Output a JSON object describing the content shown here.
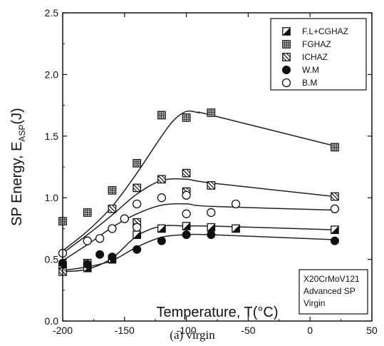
{
  "chart_data": {
    "type": "scatter",
    "xlabel": "Temperature, T(°C)",
    "ylabel": "SP Energy, E",
    "ylabel_sub": "ASP",
    "ylabel_suffix": "(J)",
    "xlim": [
      -200,
      50
    ],
    "ylim": [
      0.0,
      2.5
    ],
    "x_ticks": [
      -200,
      -150,
      -100,
      -50,
      0,
      50
    ],
    "x_tick_labels": [
      "-200",
      "-150",
      "-100",
      "-50",
      "0",
      "50"
    ],
    "y_ticks": [
      0.0,
      0.5,
      1.0,
      1.5,
      2.0,
      2.5
    ],
    "y_tick_labels": [
      "0.0",
      "0.5",
      "1.0",
      "1.5",
      "2.0",
      "2.5"
    ],
    "legend_position": "top-right",
    "annotation": [
      "X20CrMoV121",
      "Advanced SP",
      "Virgin"
    ],
    "caption": "(a)  virgin",
    "series": [
      {
        "name": "F.L+CGHAZ",
        "marker": "half-filled-square",
        "x": [
          -200,
          -180,
          -160,
          -140,
          -120,
          -100,
          -80,
          -60,
          20
        ],
        "y": [
          0.45,
          0.43,
          0.5,
          0.7,
          0.75,
          0.77,
          0.76,
          0.75,
          0.74
        ]
      },
      {
        "name": "FGHAZ",
        "marker": "crossed-square",
        "x": [
          -200,
          -180,
          -160,
          -140,
          -120,
          -100,
          -80,
          20
        ],
        "y": [
          0.81,
          0.88,
          1.06,
          1.28,
          1.67,
          1.65,
          1.69,
          1.41
        ]
      },
      {
        "name": "ICHAZ",
        "marker": "hatched-square",
        "x": [
          -200,
          -180,
          -160,
          -140,
          -140,
          -120,
          -100,
          -100,
          -80,
          20
        ],
        "y": [
          0.4,
          0.47,
          0.91,
          0.8,
          1.08,
          1.15,
          1.2,
          1.05,
          1.1,
          1.01
        ]
      },
      {
        "name": "W.M",
        "marker": "filled-circle",
        "x": [
          -200,
          -180,
          -170,
          -160,
          -140,
          -120,
          -100,
          -80,
          20
        ],
        "y": [
          0.47,
          0.46,
          0.54,
          0.52,
          0.58,
          0.65,
          0.7,
          0.7,
          0.65
        ]
      },
      {
        "name": "B.M",
        "marker": "open-circle",
        "x": [
          -200,
          -180,
          -170,
          -160,
          -150,
          -140,
          -140,
          -120,
          -100,
          -100,
          -80,
          -60,
          20
        ],
        "y": [
          0.55,
          0.65,
          0.67,
          0.75,
          0.83,
          0.76,
          0.95,
          1.0,
          1.02,
          0.87,
          0.88,
          0.95,
          0.91
        ]
      }
    ],
    "fit_curves": [
      {
        "series": "FGHAZ",
        "x": [
          -200,
          -180,
          -160,
          -140,
          -120,
          -110,
          -100,
          -90,
          -80,
          20
        ],
        "y": [
          0.57,
          0.73,
          0.93,
          1.2,
          1.5,
          1.63,
          1.7,
          1.69,
          1.67,
          1.42
        ]
      },
      {
        "series": "ICHAZ",
        "x": [
          -200,
          -180,
          -160,
          -140,
          -120,
          -100,
          -80,
          20
        ],
        "y": [
          0.55,
          0.7,
          0.86,
          1.03,
          1.14,
          1.15,
          1.12,
          1.01
        ]
      },
      {
        "series": "B.M",
        "x": [
          -200,
          -180,
          -160,
          -140,
          -120,
          -100,
          -80,
          20
        ],
        "y": [
          0.49,
          0.62,
          0.76,
          0.87,
          0.94,
          0.95,
          0.93,
          0.9
        ]
      },
      {
        "series": "F.L+CGHAZ",
        "x": [
          -200,
          -180,
          -160,
          -140,
          -120,
          -100,
          -80,
          20
        ],
        "y": [
          0.4,
          0.42,
          0.51,
          0.69,
          0.77,
          0.77,
          0.77,
          0.74
        ]
      },
      {
        "series": "W.M",
        "x": [
          -200,
          -180,
          -160,
          -140,
          -120,
          -100,
          -80,
          20
        ],
        "y": [
          0.41,
          0.44,
          0.49,
          0.6,
          0.68,
          0.7,
          0.7,
          0.66
        ]
      }
    ]
  }
}
